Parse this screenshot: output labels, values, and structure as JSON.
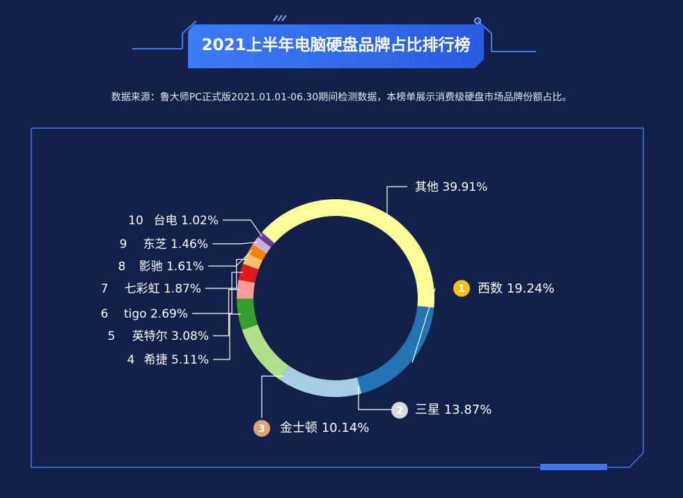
{
  "header": {
    "title": "2021上半年电脑硬盘品牌占比排行榜",
    "subtitle": "数据来源：鲁大师PC正式版2021.01.01-06.30期间检测数据，本榜单展示消费级硬盘市场品牌份额占比。"
  },
  "colors": {
    "background": "#13204a",
    "accent": "#3f79f2",
    "gold": "#f5c20b",
    "silver": "#d9d9d9",
    "bronze": "#dfa36d"
  },
  "chart_data": {
    "type": "pie",
    "style": "donut",
    "slices": [
      {
        "rank": "1",
        "name": "西数",
        "value": 19.24,
        "value_label": "19.24%",
        "color": "#2374b5"
      },
      {
        "rank": "2",
        "name": "三星",
        "value": 13.87,
        "value_label": "13.87%",
        "color": "#a6cee3"
      },
      {
        "rank": "3",
        "name": "金士顿",
        "value": 10.14,
        "value_label": "10.14%",
        "color": "#b2df8a"
      },
      {
        "rank": "4",
        "name": "希捷",
        "value": 5.11,
        "value_label": "5.11%",
        "color": "#33a02c"
      },
      {
        "rank": "5",
        "name": "英特尔",
        "value": 3.08,
        "value_label": "3.08%",
        "color": "#fb9a99"
      },
      {
        "rank": "6",
        "name": "tigo",
        "value": 2.69,
        "value_label": "2.69%",
        "color": "#e31a1c"
      },
      {
        "rank": "7",
        "name": "七彩虹",
        "value": 1.87,
        "value_label": "1.87%",
        "color": "#fdbf6f"
      },
      {
        "rank": "8",
        "name": "影驰",
        "value": 1.61,
        "value_label": "1.61%",
        "color": "#ff7f00"
      },
      {
        "rank": "9",
        "name": "东芝",
        "value": 1.46,
        "value_label": "1.46%",
        "color": "#cab2d6"
      },
      {
        "rank": "10",
        "name": "台电",
        "value": 1.02,
        "value_label": "1.02%",
        "color": "#6a3d9a"
      },
      {
        "rank": "",
        "name": "其他",
        "value": 39.91,
        "value_label": "39.91%",
        "color": "#ffff99"
      }
    ]
  }
}
